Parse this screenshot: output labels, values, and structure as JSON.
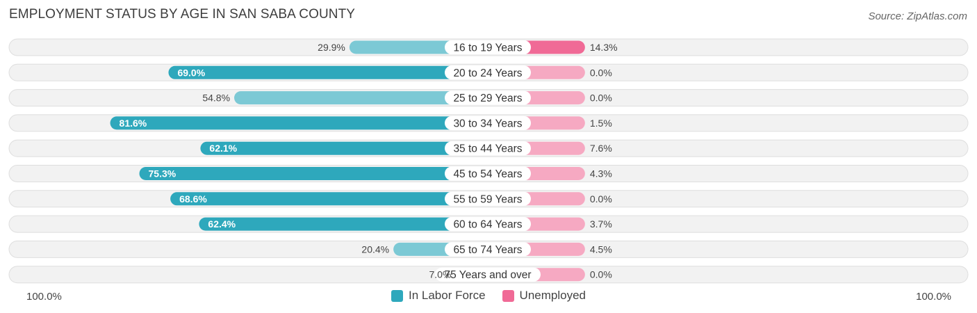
{
  "header": {
    "title": "EMPLOYMENT STATUS BY AGE IN SAN SABA COUNTY",
    "source": "Source: ZipAtlas.com"
  },
  "axis": {
    "left_label": "100.0%",
    "right_label": "100.0%"
  },
  "legend": [
    {
      "label": "In Labor Force",
      "color": "#2ea8bc"
    },
    {
      "label": "Unemployed",
      "color": "#f06a96"
    }
  ],
  "colors": {
    "labor_strong": "#2ea8bc",
    "labor_light": "#7cc9d5",
    "unemp_strong": "#f06a96",
    "unemp_light": "#f6a9c2",
    "row_bg": "#f2f2f2",
    "row_border": "#dedede"
  },
  "chart_data": {
    "type": "bar",
    "orientation": "diverging-horizontal",
    "title": "EMPLOYMENT STATUS BY AGE IN SAN SABA COUNTY",
    "categories": [
      "16 to 19 Years",
      "20 to 24 Years",
      "25 to 29 Years",
      "30 to 34 Years",
      "35 to 44 Years",
      "45 to 54 Years",
      "55 to 59 Years",
      "60 to 64 Years",
      "65 to 74 Years",
      "75 Years and over"
    ],
    "series": [
      {
        "name": "In Labor Force",
        "values": [
          29.9,
          69.0,
          54.8,
          81.6,
          62.1,
          75.3,
          68.6,
          62.4,
          20.4,
          7.0
        ],
        "labels": [
          "29.9%",
          "69.0%",
          "54.8%",
          "81.6%",
          "62.1%",
          "75.3%",
          "68.6%",
          "62.4%",
          "20.4%",
          "7.0%"
        ]
      },
      {
        "name": "Unemployed",
        "values": [
          14.3,
          0.0,
          0.0,
          1.5,
          7.6,
          4.3,
          0.0,
          3.7,
          4.5,
          0.0
        ],
        "labels": [
          "14.3%",
          "0.0%",
          "0.0%",
          "1.5%",
          "7.6%",
          "4.3%",
          "0.0%",
          "3.7%",
          "4.5%",
          "0.0%"
        ]
      }
    ],
    "xlim": [
      -100,
      100
    ],
    "legend_position": "bottom-center",
    "grid": false
  }
}
